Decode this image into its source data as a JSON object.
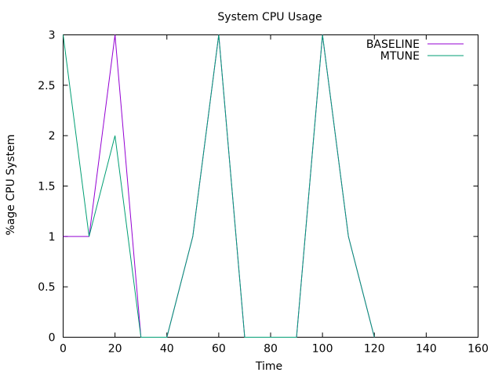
{
  "chart_data": {
    "type": "line",
    "title": "System CPU Usage",
    "xlabel": "Time",
    "ylabel": "%age CPU System",
    "xlim": [
      0,
      160
    ],
    "ylim": [
      0,
      3
    ],
    "xticks": [
      0,
      20,
      40,
      60,
      80,
      100,
      120,
      140,
      160
    ],
    "yticks": [
      0,
      0.5,
      1,
      1.5,
      2,
      2.5,
      3
    ],
    "ytick_labels": [
      "0",
      "0.5",
      "1",
      "1.5",
      "2",
      "2.5",
      "3"
    ],
    "grid": false,
    "legend": "top-right",
    "series": [
      {
        "name": "BASELINE",
        "color": "#9400d3",
        "x": [
          0,
          10,
          20,
          30,
          40,
          50,
          60,
          70,
          80,
          90,
          100,
          110,
          120
        ],
        "y": [
          1,
          1,
          3,
          0,
          0,
          1,
          3,
          0,
          0,
          0,
          3,
          1,
          0
        ]
      },
      {
        "name": "MTUNE",
        "color": "#009e73",
        "x": [
          0,
          10,
          20,
          30,
          40,
          50,
          60,
          70,
          80,
          90,
          100,
          110,
          120
        ],
        "y": [
          3,
          1,
          2,
          0,
          0,
          1,
          3,
          0,
          0,
          0,
          3,
          1,
          0
        ]
      }
    ]
  }
}
